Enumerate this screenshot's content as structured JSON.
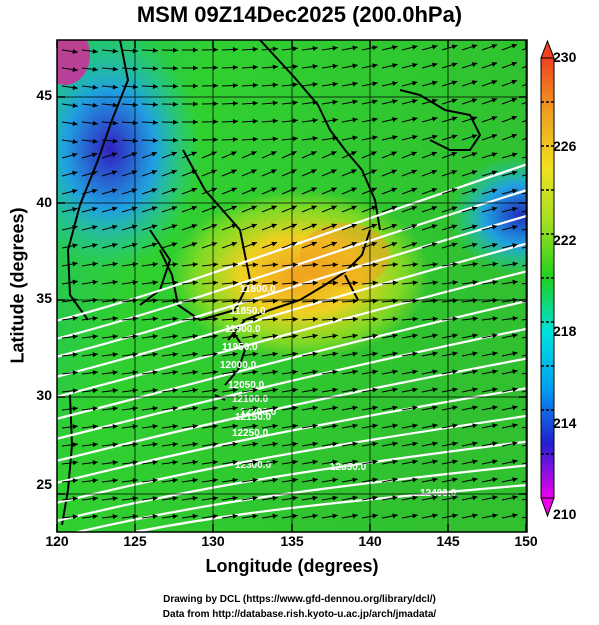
{
  "title": "MSM 09Z14Dec2025 (200.0hPa)",
  "xlabel": "Longitude (degrees)",
  "ylabel": "Latitude  (degrees)",
  "x_ticks": [
    "120",
    "125",
    "130",
    "135",
    "140",
    "145",
    "150"
  ],
  "y_ticks": [
    "25",
    "30",
    "35",
    "40",
    "45"
  ],
  "colorbar": {
    "ticks": [
      "210",
      "214",
      "218",
      "222",
      "226",
      "230"
    ],
    "stops": [
      "#ee00ee",
      "#2020d0",
      "#00a0f0",
      "#00e0e0",
      "#20d020",
      "#a0e020",
      "#f0e020",
      "#f0a020",
      "#f04020"
    ]
  },
  "contours": [
    {
      "label": "11800.0"
    },
    {
      "label": "11850.0"
    },
    {
      "label": "11900.0"
    },
    {
      "label": "11950.0"
    },
    {
      "label": "12000.0"
    },
    {
      "label": "12050.0"
    },
    {
      "label": "12100.0"
    },
    {
      "label": "12150.0"
    },
    {
      "label": "12200.0"
    },
    {
      "label": "12250.0"
    },
    {
      "label": "12300.0"
    },
    {
      "label": "12350.0"
    },
    {
      "label": "12400.0"
    }
  ],
  "credits": [
    "Drawing by DCL (https://www.gfd-dennou.org/library/dcl/)",
    "Data from http://database.rish.kyoto-u.ac.jp/arch/jmadata/"
  ]
}
